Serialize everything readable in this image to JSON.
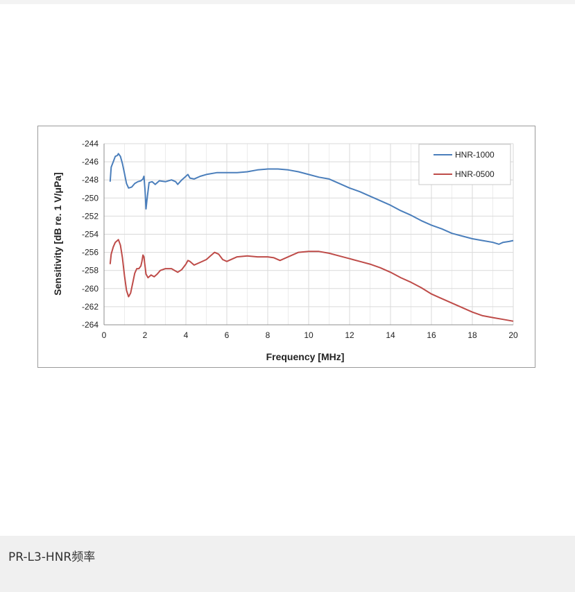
{
  "caption": {
    "text": "PR-L3-HNR频率"
  },
  "chart_data": {
    "type": "line",
    "xlabel": "Frequency [MHz]",
    "ylabel": "Sensitivity [dB re. 1 V/μPa]",
    "xlim": [
      0,
      20
    ],
    "ylim": [
      -264,
      -244
    ],
    "x_ticks": [
      0,
      2,
      4,
      6,
      8,
      10,
      12,
      14,
      16,
      18,
      20
    ],
    "x_tick_labels": [
      "0",
      "2",
      "4",
      "6",
      "8",
      "10",
      "12",
      "14",
      "16",
      "18",
      "20"
    ],
    "y_ticks": [
      -264,
      -262,
      -260,
      -258,
      -256,
      -254,
      -252,
      -250,
      -248,
      -246,
      -244
    ],
    "y_tick_labels": [
      "-264",
      "-262",
      "-260",
      "-258",
      "-256",
      "-254",
      "-252",
      "-250",
      "-248",
      "-246",
      "-244"
    ],
    "grid": true,
    "legend_position": "top-right",
    "series": [
      {
        "name": "HNR-1000",
        "color": "#4a7ebb",
        "points": [
          [
            0.3,
            -248.2
          ],
          [
            0.35,
            -246.6
          ],
          [
            0.45,
            -246.0
          ],
          [
            0.55,
            -245.4
          ],
          [
            0.65,
            -245.3
          ],
          [
            0.7,
            -245.1
          ],
          [
            0.8,
            -245.4
          ],
          [
            0.9,
            -246.2
          ],
          [
            1.0,
            -247.3
          ],
          [
            1.1,
            -248.4
          ],
          [
            1.2,
            -248.9
          ],
          [
            1.35,
            -248.8
          ],
          [
            1.5,
            -248.4
          ],
          [
            1.65,
            -248.2
          ],
          [
            1.8,
            -248.1
          ],
          [
            1.9,
            -247.9
          ],
          [
            1.95,
            -247.6
          ],
          [
            2.0,
            -249.0
          ],
          [
            2.05,
            -251.2
          ],
          [
            2.1,
            -250.2
          ],
          [
            2.2,
            -248.3
          ],
          [
            2.35,
            -248.2
          ],
          [
            2.5,
            -248.5
          ],
          [
            2.6,
            -248.3
          ],
          [
            2.7,
            -248.1
          ],
          [
            3.0,
            -248.2
          ],
          [
            3.3,
            -248.0
          ],
          [
            3.5,
            -248.2
          ],
          [
            3.6,
            -248.5
          ],
          [
            3.8,
            -248.0
          ],
          [
            4.0,
            -247.6
          ],
          [
            4.1,
            -247.4
          ],
          [
            4.2,
            -247.8
          ],
          [
            4.4,
            -247.9
          ],
          [
            4.7,
            -247.6
          ],
          [
            5.0,
            -247.4
          ],
          [
            5.5,
            -247.2
          ],
          [
            6.0,
            -247.2
          ],
          [
            6.5,
            -247.2
          ],
          [
            7.0,
            -247.1
          ],
          [
            7.5,
            -246.9
          ],
          [
            8.0,
            -246.8
          ],
          [
            8.5,
            -246.8
          ],
          [
            9.0,
            -246.9
          ],
          [
            9.5,
            -247.1
          ],
          [
            10.0,
            -247.4
          ],
          [
            10.5,
            -247.7
          ],
          [
            11.0,
            -247.9
          ],
          [
            11.5,
            -248.4
          ],
          [
            12.0,
            -248.9
          ],
          [
            12.5,
            -249.3
          ],
          [
            13.0,
            -249.8
          ],
          [
            13.5,
            -250.3
          ],
          [
            14.0,
            -250.8
          ],
          [
            14.5,
            -251.4
          ],
          [
            15.0,
            -251.9
          ],
          [
            15.5,
            -252.5
          ],
          [
            16.0,
            -253.0
          ],
          [
            16.5,
            -253.4
          ],
          [
            17.0,
            -253.9
          ],
          [
            17.5,
            -254.2
          ],
          [
            18.0,
            -254.5
          ],
          [
            18.5,
            -254.7
          ],
          [
            19.0,
            -254.9
          ],
          [
            19.3,
            -255.1
          ],
          [
            19.5,
            -254.9
          ],
          [
            19.8,
            -254.8
          ],
          [
            20.0,
            -254.7
          ]
        ]
      },
      {
        "name": "HNR-0500",
        "color": "#be4b48",
        "points": [
          [
            0.3,
            -257.3
          ],
          [
            0.35,
            -256.2
          ],
          [
            0.45,
            -255.4
          ],
          [
            0.55,
            -254.9
          ],
          [
            0.65,
            -254.7
          ],
          [
            0.7,
            -254.6
          ],
          [
            0.8,
            -255.2
          ],
          [
            0.9,
            -256.6
          ],
          [
            1.0,
            -258.6
          ],
          [
            1.1,
            -260.2
          ],
          [
            1.2,
            -260.9
          ],
          [
            1.3,
            -260.5
          ],
          [
            1.4,
            -259.4
          ],
          [
            1.5,
            -258.3
          ],
          [
            1.6,
            -257.8
          ],
          [
            1.7,
            -257.8
          ],
          [
            1.8,
            -257.5
          ],
          [
            1.85,
            -257.0
          ],
          [
            1.9,
            -256.3
          ],
          [
            1.95,
            -256.5
          ],
          [
            2.05,
            -258.4
          ],
          [
            2.15,
            -258.8
          ],
          [
            2.3,
            -258.5
          ],
          [
            2.45,
            -258.7
          ],
          [
            2.6,
            -258.4
          ],
          [
            2.75,
            -258.0
          ],
          [
            3.0,
            -257.8
          ],
          [
            3.3,
            -257.8
          ],
          [
            3.6,
            -258.2
          ],
          [
            3.8,
            -257.9
          ],
          [
            4.0,
            -257.3
          ],
          [
            4.1,
            -256.9
          ],
          [
            4.2,
            -257.0
          ],
          [
            4.4,
            -257.4
          ],
          [
            4.7,
            -257.1
          ],
          [
            5.0,
            -256.8
          ],
          [
            5.2,
            -256.4
          ],
          [
            5.4,
            -256.0
          ],
          [
            5.6,
            -256.2
          ],
          [
            5.8,
            -256.8
          ],
          [
            6.0,
            -257.0
          ],
          [
            6.3,
            -256.7
          ],
          [
            6.5,
            -256.5
          ],
          [
            7.0,
            -256.4
          ],
          [
            7.5,
            -256.5
          ],
          [
            8.0,
            -256.5
          ],
          [
            8.3,
            -256.6
          ],
          [
            8.6,
            -256.9
          ],
          [
            9.0,
            -256.5
          ],
          [
            9.5,
            -256.0
          ],
          [
            10.0,
            -255.9
          ],
          [
            10.5,
            -255.9
          ],
          [
            11.0,
            -256.1
          ],
          [
            11.5,
            -256.4
          ],
          [
            12.0,
            -256.7
          ],
          [
            12.5,
            -257.0
          ],
          [
            13.0,
            -257.3
          ],
          [
            13.5,
            -257.7
          ],
          [
            14.0,
            -258.2
          ],
          [
            14.5,
            -258.8
          ],
          [
            15.0,
            -259.3
          ],
          [
            15.5,
            -259.9
          ],
          [
            16.0,
            -260.6
          ],
          [
            16.5,
            -261.1
          ],
          [
            17.0,
            -261.6
          ],
          [
            17.5,
            -262.1
          ],
          [
            18.0,
            -262.6
          ],
          [
            18.5,
            -263.0
          ],
          [
            19.0,
            -263.2
          ],
          [
            19.5,
            -263.4
          ],
          [
            20.0,
            -263.6
          ]
        ]
      }
    ]
  }
}
